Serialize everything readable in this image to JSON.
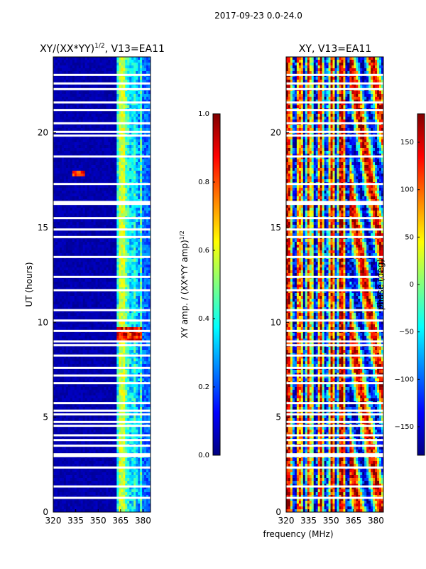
{
  "figure": {
    "suptitle": "2017-09-23 0.0-24.0",
    "xlabel": "frequency (MHz)"
  },
  "colors": {
    "jet": [
      "#000080",
      "#0000ff",
      "#0080ff",
      "#00ffff",
      "#80ff80",
      "#ffff00",
      "#ff8000",
      "#ff0000",
      "#800000"
    ],
    "gap": "#ffffff",
    "axis": "#000000"
  },
  "chart_data": [
    {
      "type": "heatmap",
      "title_main": "XY/(XX*YY)",
      "title_sup": "1/2",
      "title_rest": ", V13=EA11",
      "xlabel": "",
      "ylabel": "UT (hours)",
      "xlim": [
        320,
        385
      ],
      "ylim": [
        0,
        24
      ],
      "xticks": [
        "320",
        "335",
        "350",
        "365",
        "380"
      ],
      "xtick_values": [
        320,
        335,
        350,
        365,
        380
      ],
      "yticks": [
        "0",
        "5",
        "10",
        "15",
        "20"
      ],
      "ytick_values": [
        0,
        5,
        10,
        15,
        20
      ],
      "colorbar": {
        "label_main": "XY amp. / (XX*YY amp)",
        "label_sup": "1/2",
        "range": [
          0,
          1
        ],
        "ticks": [
          "0.0",
          "0.2",
          "0.4",
          "0.6",
          "0.8",
          "1.0"
        ],
        "tick_values": [
          0,
          0.2,
          0.4,
          0.6,
          0.8,
          1.0
        ]
      },
      "data_gaps_hours": [
        0.75,
        1.35,
        2.35,
        2.95,
        3.05,
        3.5,
        3.8,
        4.05,
        4.55,
        4.75,
        5.15,
        5.35,
        5.75,
        6.8,
        7.2,
        7.6,
        8.25,
        8.8,
        9.0,
        9.55,
        10.1,
        10.65,
        11.7,
        12.4,
        13.45,
        14.5,
        14.9,
        15.5,
        16.25,
        16.35,
        17.3,
        18.75,
        19.85,
        20.05,
        20.5,
        21.2,
        21.6,
        22.3,
        22.6,
        23.05
      ]
    },
    {
      "type": "heatmap",
      "title_main": "XY, V13=EA11",
      "xlabel": "",
      "ylabel": "",
      "xlim": [
        320,
        385
      ],
      "ylim": [
        0,
        24
      ],
      "xticks": [
        "320",
        "335",
        "350",
        "365",
        "380"
      ],
      "xtick_values": [
        320,
        335,
        350,
        365,
        380
      ],
      "yticks": [
        "0",
        "5",
        "10",
        "15",
        "20"
      ],
      "ytick_values": [
        0,
        5,
        10,
        15,
        20
      ],
      "colorbar": {
        "label_main": "phase (deg)",
        "range": [
          -180,
          180
        ],
        "ticks": [
          "−150",
          "−100",
          "−50",
          "0",
          "50",
          "100",
          "150"
        ],
        "tick_values": [
          -150,
          -100,
          -50,
          0,
          50,
          100,
          150
        ]
      },
      "data_gaps_hours": [
        0.75,
        1.35,
        2.35,
        2.95,
        3.05,
        3.5,
        3.8,
        4.05,
        4.55,
        4.75,
        5.15,
        5.35,
        5.75,
        6.8,
        7.2,
        7.6,
        8.25,
        8.8,
        9.0,
        9.55,
        10.1,
        10.65,
        11.7,
        12.4,
        13.45,
        14.5,
        14.9,
        15.5,
        16.25,
        16.35,
        17.3,
        18.75,
        19.85,
        20.05,
        20.5,
        21.2,
        21.6,
        22.3,
        22.6,
        23.05
      ]
    }
  ]
}
